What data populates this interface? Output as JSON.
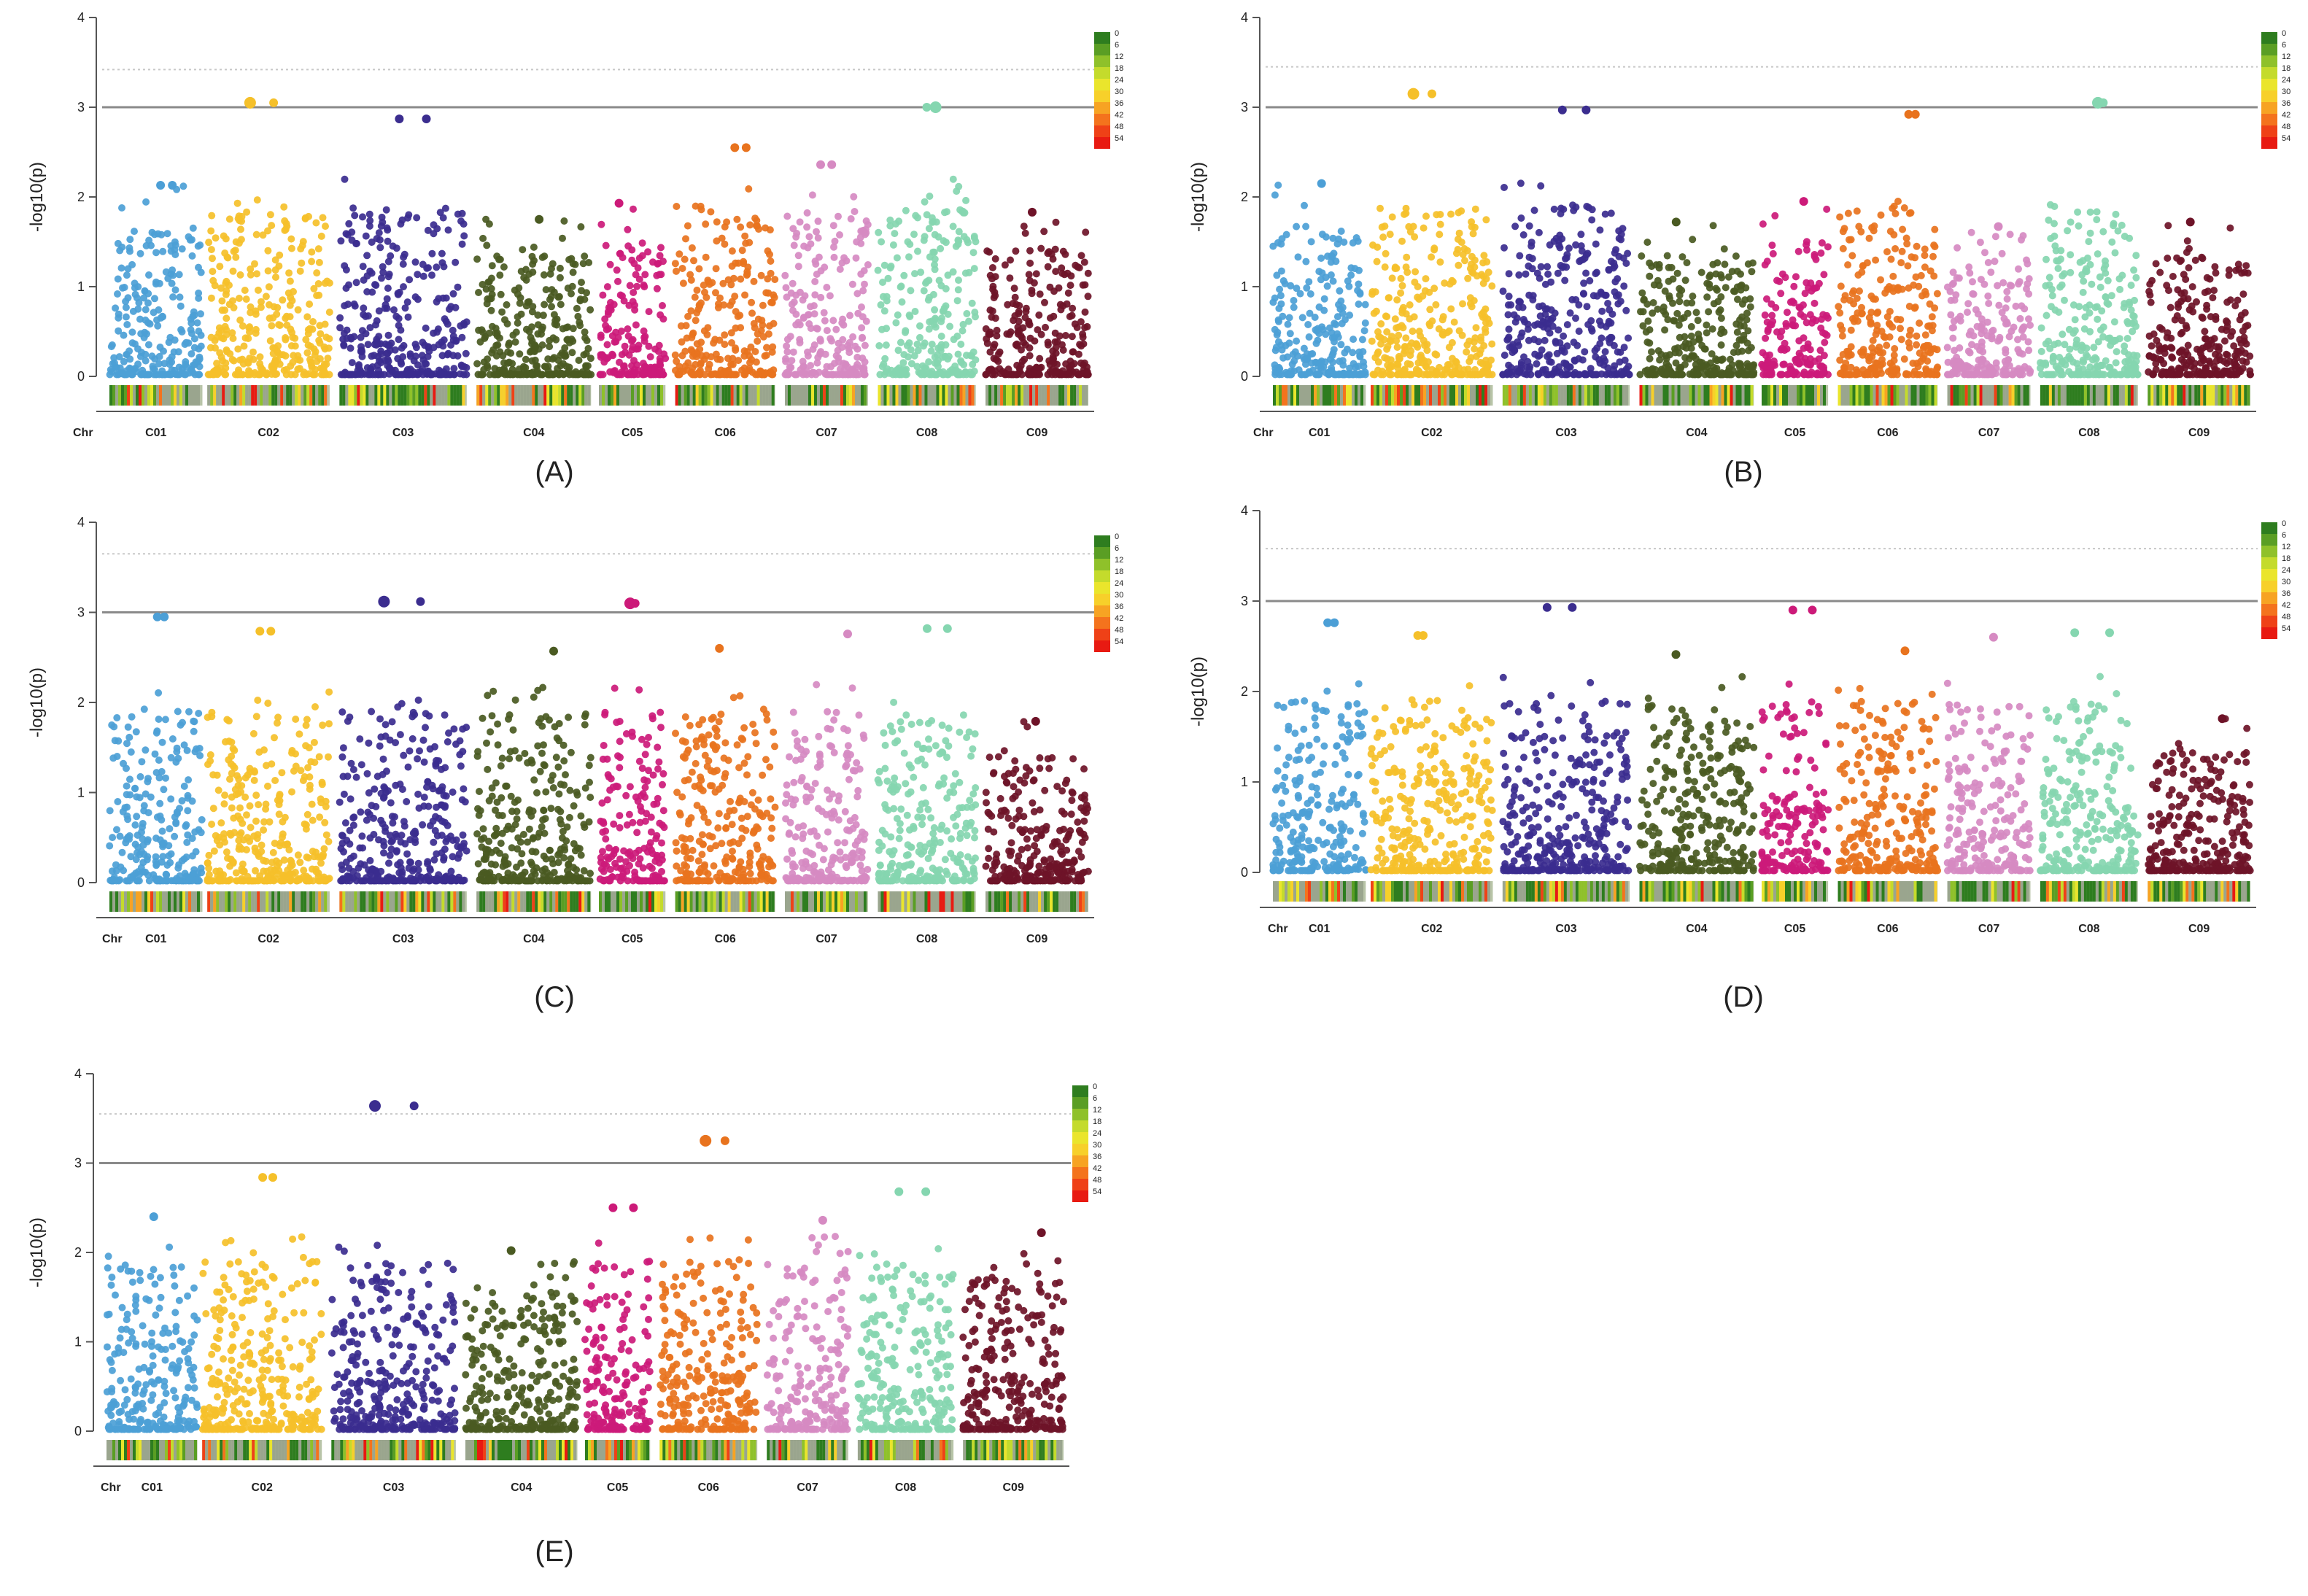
{
  "figure": {
    "description_panels": [
      "A",
      "B",
      "C",
      "D",
      "E"
    ]
  },
  "chart_data": [
    {
      "type": "scatter",
      "panel": "(A)",
      "ylabel": "-log10(p)",
      "ylim": [
        0,
        4
      ],
      "yticks": [
        "0",
        "1",
        "2",
        "3",
        "4"
      ],
      "x_first_label": "Chr",
      "chromosomes": [
        "C01",
        "C02",
        "C03",
        "C04",
        "C05",
        "C06",
        "C07",
        "C08",
        "C09"
      ],
      "threshold_solid": 3.0,
      "threshold_dotted": 3.42,
      "density_legend": [
        "0",
        "6",
        "12",
        "18",
        "24",
        "30",
        "36",
        "42",
        "48",
        "54"
      ],
      "top_hits": [
        {
          "chr": "C02",
          "y": 3.05
        },
        {
          "chr": "C03",
          "y": 2.87
        },
        {
          "chr": "C08",
          "y": 3.0
        },
        {
          "chr": "C06",
          "y": 2.55
        },
        {
          "chr": "C07",
          "y": 2.36
        },
        {
          "chr": "C01",
          "y": 2.13
        }
      ],
      "max_by_chr": [
        2.13,
        3.05,
        2.87,
        1.75,
        1.93,
        2.55,
        2.36,
        3.0,
        1.83
      ]
    },
    {
      "type": "scatter",
      "panel": "(B)",
      "ylabel": "-log10(p)",
      "ylim": [
        0,
        4
      ],
      "yticks": [
        "0",
        "1",
        "2",
        "3",
        "4"
      ],
      "x_first_label": "Chr",
      "chromosomes": [
        "C01",
        "C02",
        "C03",
        "C04",
        "C05",
        "C06",
        "C07",
        "C08",
        "C09"
      ],
      "threshold_solid": 3.0,
      "threshold_dotted": 3.45,
      "density_legend": [
        "0",
        "6",
        "12",
        "18",
        "24",
        "30",
        "36",
        "42",
        "48",
        "54"
      ],
      "top_hits": [
        {
          "chr": "C02",
          "y": 3.15
        },
        {
          "chr": "C03",
          "y": 2.97
        },
        {
          "chr": "C08",
          "y": 3.05
        },
        {
          "chr": "C06",
          "y": 2.92
        }
      ],
      "max_by_chr": [
        2.15,
        3.15,
        2.97,
        1.72,
        1.95,
        2.92,
        1.67,
        3.05,
        1.72
      ]
    },
    {
      "type": "scatter",
      "panel": "(C)",
      "ylabel": "-log10(p)",
      "ylim": [
        0,
        4
      ],
      "yticks": [
        "0",
        "1",
        "2",
        "3",
        "4"
      ],
      "x_first_label": "Chr",
      "chromosomes": [
        "C01",
        "C02",
        "C03",
        "C04",
        "C05",
        "C06",
        "C07",
        "C08",
        "C09"
      ],
      "threshold_solid": 3.0,
      "threshold_dotted": 3.65,
      "density_legend": [
        "0",
        "6",
        "12",
        "18",
        "24",
        "30",
        "36",
        "42",
        "48",
        "54"
      ],
      "top_hits": [
        {
          "chr": "C03",
          "y": 3.12
        },
        {
          "chr": "C05",
          "y": 3.1
        },
        {
          "chr": "C01",
          "y": 2.95
        },
        {
          "chr": "C08",
          "y": 2.82
        },
        {
          "chr": "C02",
          "y": 2.79
        }
      ],
      "max_by_chr": [
        2.95,
        2.79,
        3.12,
        2.57,
        3.1,
        2.6,
        2.76,
        2.82,
        1.79
      ]
    },
    {
      "type": "scatter",
      "panel": "(D)",
      "ylabel": "-log10(p)",
      "ylim": [
        0,
        4
      ],
      "yticks": [
        "0",
        "1",
        "2",
        "3",
        "4"
      ],
      "x_first_label": "Chr",
      "chromosomes": [
        "C01",
        "C02",
        "C03",
        "C04",
        "C05",
        "C06",
        "C07",
        "C08",
        "C09"
      ],
      "threshold_solid": 3.0,
      "threshold_dotted": 3.58,
      "density_legend": [
        "0",
        "6",
        "12",
        "18",
        "24",
        "30",
        "36",
        "42",
        "48",
        "54"
      ],
      "top_hits": [
        {
          "chr": "C03",
          "y": 2.93
        },
        {
          "chr": "C05",
          "y": 2.9
        },
        {
          "chr": "C01",
          "y": 2.76
        },
        {
          "chr": "C08",
          "y": 2.65
        },
        {
          "chr": "C02",
          "y": 2.62
        }
      ],
      "max_by_chr": [
        2.76,
        2.62,
        2.93,
        2.41,
        2.9,
        2.45,
        2.6,
        2.65,
        1.7
      ]
    },
    {
      "type": "scatter",
      "panel": "(E)",
      "ylabel": "-log10(p)",
      "ylim": [
        0,
        4
      ],
      "yticks": [
        "0",
        "1",
        "2",
        "3",
        "4"
      ],
      "x_first_label": "Chr",
      "chromosomes": [
        "C01",
        "C02",
        "C03",
        "C04",
        "C05",
        "C06",
        "C07",
        "C08",
        "C09"
      ],
      "threshold_solid": 3.0,
      "threshold_dotted": 3.55,
      "density_legend": [
        "0",
        "6",
        "12",
        "18",
        "24",
        "30",
        "36",
        "42",
        "48",
        "54"
      ],
      "top_hits": [
        {
          "chr": "C03",
          "y": 3.64
        },
        {
          "chr": "C06",
          "y": 3.25
        },
        {
          "chr": "C02",
          "y": 2.84
        },
        {
          "chr": "C08",
          "y": 2.68
        },
        {
          "chr": "C05",
          "y": 2.5
        }
      ],
      "max_by_chr": [
        2.4,
        2.84,
        3.64,
        2.02,
        2.5,
        3.25,
        2.36,
        2.68,
        2.22
      ]
    }
  ],
  "palette": {
    "chromosome_colors": [
      "#4c9fd6",
      "#f5c02a",
      "#3b2d8f",
      "#4a5a22",
      "#cc1a79",
      "#e8731e",
      "#d68ac2",
      "#85d6b0",
      "#6e1328"
    ],
    "density_colors": [
      "#2e7d1f",
      "#5a9e24",
      "#8fc12a",
      "#c4db2c",
      "#eae52c",
      "#f7d02a",
      "#f7a323",
      "#f4731d",
      "#ef4117",
      "#e81a12"
    ],
    "threshold_line": "#8a8a8a",
    "dotted_line": "#c8c8c8",
    "text": "#222222"
  }
}
